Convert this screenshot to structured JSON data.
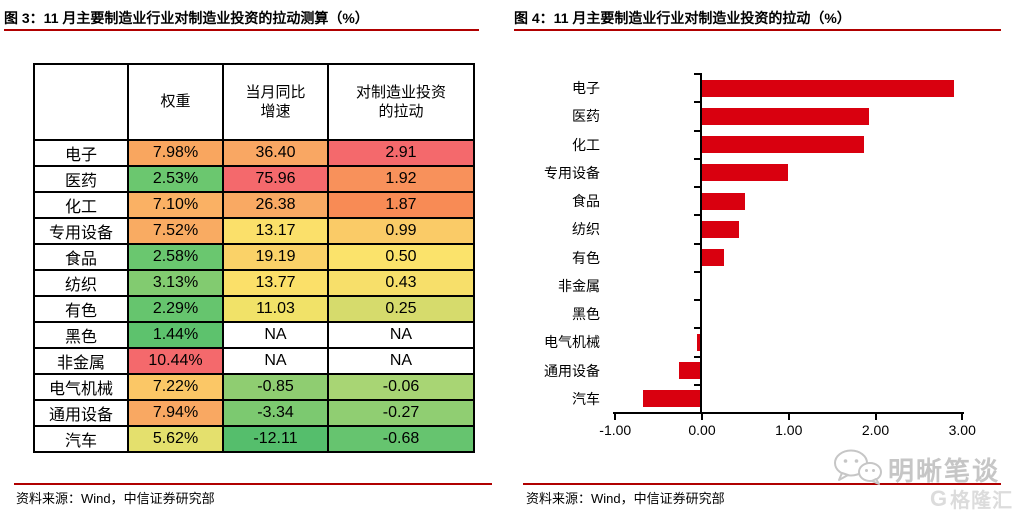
{
  "figure3": {
    "title": "图 3：11 月主要制造业行业对制造业投资的拉动测算（%）",
    "source": "资料来源：Wind，中信证券研究部",
    "table": {
      "headers": [
        "",
        "权重",
        "当月同比\n增速",
        "对制造业投资\n的拉动"
      ],
      "rows": [
        {
          "label": "电子",
          "weight": "7.98%",
          "growth": "36.40",
          "pull": "2.91",
          "weight_bg": "#F9A65F",
          "growth_bg": "#F9A763",
          "pull_bg": "#F4696C"
        },
        {
          "label": "医药",
          "weight": "2.53%",
          "growth": "75.96",
          "pull": "1.92",
          "weight_bg": "#6BC76F",
          "growth_bg": "#F4696C",
          "pull_bg": "#F8915B"
        },
        {
          "label": "化工",
          "weight": "7.10%",
          "growth": "26.38",
          "pull": "1.87",
          "weight_bg": "#FAB164",
          "growth_bg": "#F9A963",
          "pull_bg": "#F88B55"
        },
        {
          "label": "专用设备",
          "weight": "7.52%",
          "growth": "13.17",
          "pull": "0.99",
          "weight_bg": "#F9AB62",
          "growth_bg": "#FBE06A",
          "pull_bg": "#FACB67"
        },
        {
          "label": "食品",
          "weight": "2.58%",
          "growth": "19.19",
          "pull": "0.50",
          "weight_bg": "#6AC76F",
          "growth_bg": "#FAD268",
          "pull_bg": "#FBE36B"
        },
        {
          "label": "纺织",
          "weight": "3.13%",
          "growth": "13.77",
          "pull": "0.43",
          "weight_bg": "#82CB70",
          "growth_bg": "#FBE069",
          "pull_bg": "#F7DF6A"
        },
        {
          "label": "有色",
          "weight": "2.29%",
          "growth": "11.03",
          "pull": "0.25",
          "weight_bg": "#66C56E",
          "growth_bg": "#F1E268",
          "pull_bg": "#D6DB6C"
        },
        {
          "label": "黑色",
          "weight": "1.44%",
          "growth": "NA",
          "pull": "NA",
          "weight_bg": "#5DC26D",
          "growth_bg": "#FFFFFF",
          "pull_bg": "#FFFFFF"
        },
        {
          "label": "非金属",
          "weight": "10.44%",
          "growth": "NA",
          "pull": "NA",
          "weight_bg": "#F4696C",
          "growth_bg": "#FFFFFF",
          "pull_bg": "#FFFFFF"
        },
        {
          "label": "电气机械",
          "weight": "7.22%",
          "growth": "-0.85",
          "pull": "-0.06",
          "weight_bg": "#FBC766",
          "growth_bg": "#8FCD71",
          "pull_bg": "#A8D574"
        },
        {
          "label": "通用设备",
          "weight": "7.94%",
          "growth": "-3.34",
          "pull": "-0.27",
          "weight_bg": "#F9A862",
          "growth_bg": "#7CC970",
          "pull_bg": "#90CE72"
        },
        {
          "label": "汽车",
          "weight": "5.62%",
          "growth": "-12.11",
          "pull": "-0.68",
          "weight_bg": "#E4E06D",
          "growth_bg": "#55BE6C",
          "pull_bg": "#66C46F"
        }
      ]
    }
  },
  "figure4": {
    "title": "图 4：11 月主要制造业行业对制造业投资的拉动（%）",
    "source": "资料来源：Wind，中信证券研究部"
  },
  "chart_data": {
    "type": "bar",
    "orientation": "horizontal",
    "title": "11 月主要制造业行业对制造业投资的拉动（%）",
    "categories": [
      "电子",
      "医药",
      "化工",
      "专用设备",
      "食品",
      "纺织",
      "有色",
      "非金属",
      "黑色",
      "电气机械",
      "通用设备",
      "汽车"
    ],
    "values": [
      2.91,
      1.92,
      1.87,
      0.99,
      0.5,
      0.43,
      0.25,
      null,
      null,
      -0.06,
      -0.27,
      -0.68
    ],
    "xlim": [
      -1.0,
      3.0
    ],
    "xticks": [
      -1,
      0,
      1,
      2,
      3
    ],
    "xtick_labels": [
      "-1.00",
      "0.00",
      "1.00",
      "2.00",
      "3.00"
    ],
    "bar_color": "#D9000F",
    "grid": false,
    "legend": false
  },
  "watermarks": {
    "wechat_account": "明晰笔谈",
    "platform": "格隆汇"
  },
  "colors": {
    "rule_red": "#B00000",
    "bar_red": "#D9000F",
    "text": "#000000",
    "watermark_gray": "#C6C6C6"
  }
}
